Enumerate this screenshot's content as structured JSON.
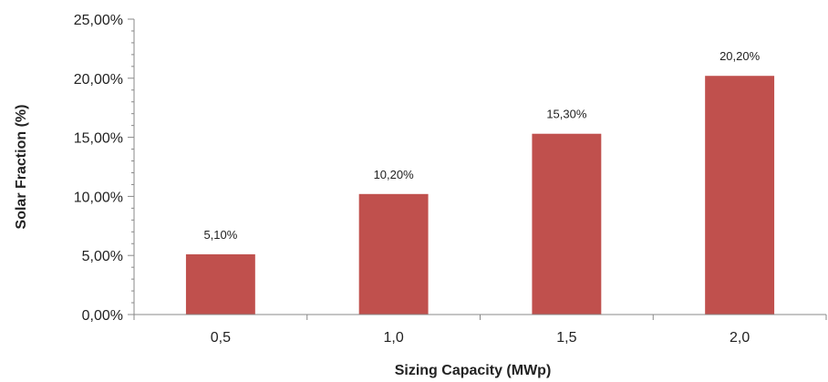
{
  "chart_data": {
    "type": "bar",
    "title": "",
    "xlabel": "Sizing Capacity (MWp)",
    "ylabel": "Solar Fraction (%)",
    "categories": [
      "0,5",
      "1,0",
      "1,5",
      "2,0"
    ],
    "values": [
      5.1,
      10.2,
      15.3,
      20.2
    ],
    "value_labels": [
      "5,10%",
      "10,20%",
      "15,30%",
      "20,20%"
    ],
    "ylim": [
      0,
      25
    ],
    "y_ticks": [
      0,
      5,
      10,
      15,
      20,
      25
    ],
    "y_tick_labels": [
      "0,00%",
      "5,00%",
      "10,00%",
      "15,00%",
      "20,00%",
      "25,00%"
    ],
    "grid": false,
    "legend": "none",
    "colors": {
      "bar": "#c0504d",
      "axis": "#888888",
      "text": "#222222"
    }
  }
}
